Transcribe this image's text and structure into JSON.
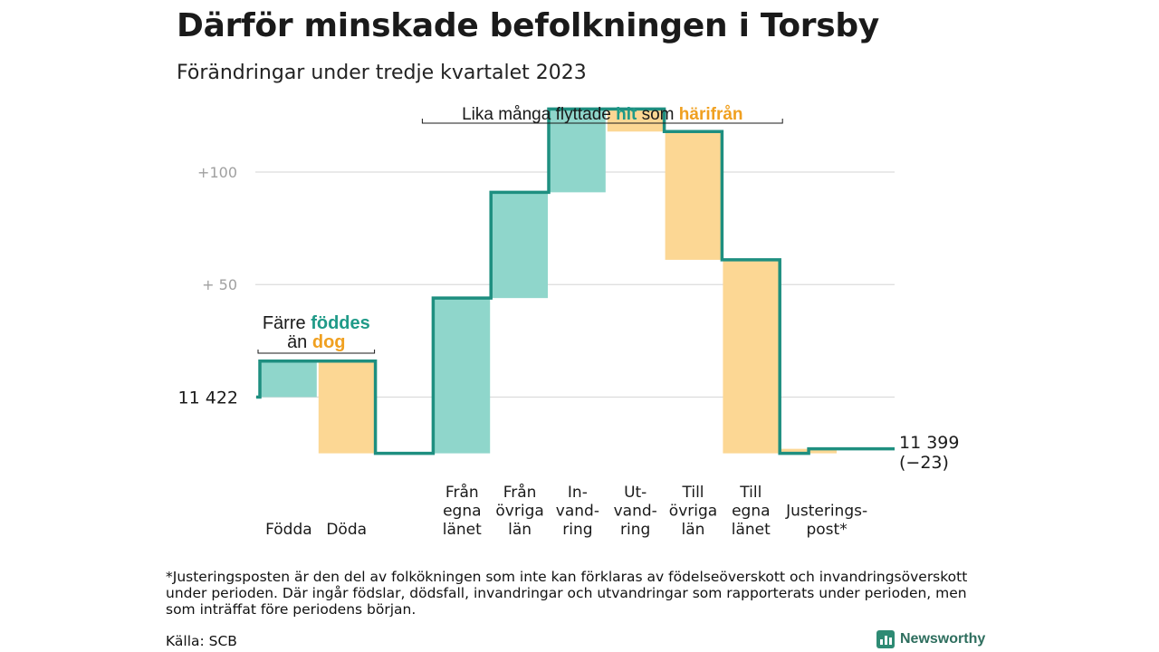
{
  "title": "Därför minskade befolkningen i Torsby",
  "subtitle": "Förändringar under tredje kvartalet 2023",
  "footnote": "*Justeringsposten är den del av folkökningen som inte kan förklaras av födelseöverskott och invandringsöverskott under perioden. Där ingår födslar, dödsfall, invandringar och utvandringar som rapporterats under perioden, men som inträffat före periodens början.",
  "source": "Källa: SCB",
  "brand": "Newsworthy",
  "colors": {
    "increase": "#8fd6cb",
    "decrease": "#fcd794",
    "line": "#1e8f80",
    "hit_text": "#1f9a88",
    "dog_text": "#f0a020",
    "grid": "#dcdcdc",
    "axis_text": "#a0a0a0"
  },
  "chart_data": {
    "type": "waterfall",
    "start_label": "11  422",
    "start_value": 11422,
    "end_label": "11 399",
    "end_change_label": "(−23)",
    "end_value": 11399,
    "y_ticks": [
      {
        "value": 50,
        "label": "+  50"
      },
      {
        "value": 100,
        "label": "+100"
      }
    ],
    "y_range": [
      -32,
      133
    ],
    "steps": [
      {
        "label": [
          "Födda"
        ],
        "delta": 16,
        "kind": "increase"
      },
      {
        "label": [
          "Döda"
        ],
        "delta": -41,
        "kind": "decrease"
      },
      {
        "label": [],
        "delta": 0,
        "kind": "gap"
      },
      {
        "label": [
          "Från",
          "egna",
          "länet"
        ],
        "delta": 69,
        "kind": "increase"
      },
      {
        "label": [
          "Från",
          "övriga",
          "län"
        ],
        "delta": 47,
        "kind": "increase"
      },
      {
        "label": [
          "In-",
          "vand-",
          "ring"
        ],
        "delta": 37,
        "kind": "increase"
      },
      {
        "label": [
          "Ut-",
          "vand-",
          "ring"
        ],
        "delta": -10,
        "kind": "decrease"
      },
      {
        "label": [
          "Till",
          "övriga",
          "län"
        ],
        "delta": -57,
        "kind": "decrease"
      },
      {
        "label": [
          "Till",
          "egna",
          "länet"
        ],
        "delta": -86,
        "kind": "decrease"
      },
      {
        "label": [
          "Justerings-",
          "post*"
        ],
        "delta": 2,
        "kind": "adjustment"
      }
    ],
    "annotations": [
      {
        "text_parts": [
          [
            "Färre ",
            "plain"
          ],
          [
            "föddes",
            "hit"
          ]
        ],
        "text_parts_2": [
          [
            "än ",
            "plain"
          ],
          [
            "dog",
            "dog"
          ]
        ],
        "span": [
          0,
          1
        ]
      },
      {
        "text_parts": [
          [
            "Lika många flyttade ",
            "plain"
          ],
          [
            "hit",
            "hit"
          ],
          [
            " som ",
            "plain"
          ],
          [
            "härifrån",
            "dog"
          ]
        ],
        "span": [
          3,
          8
        ]
      }
    ]
  }
}
